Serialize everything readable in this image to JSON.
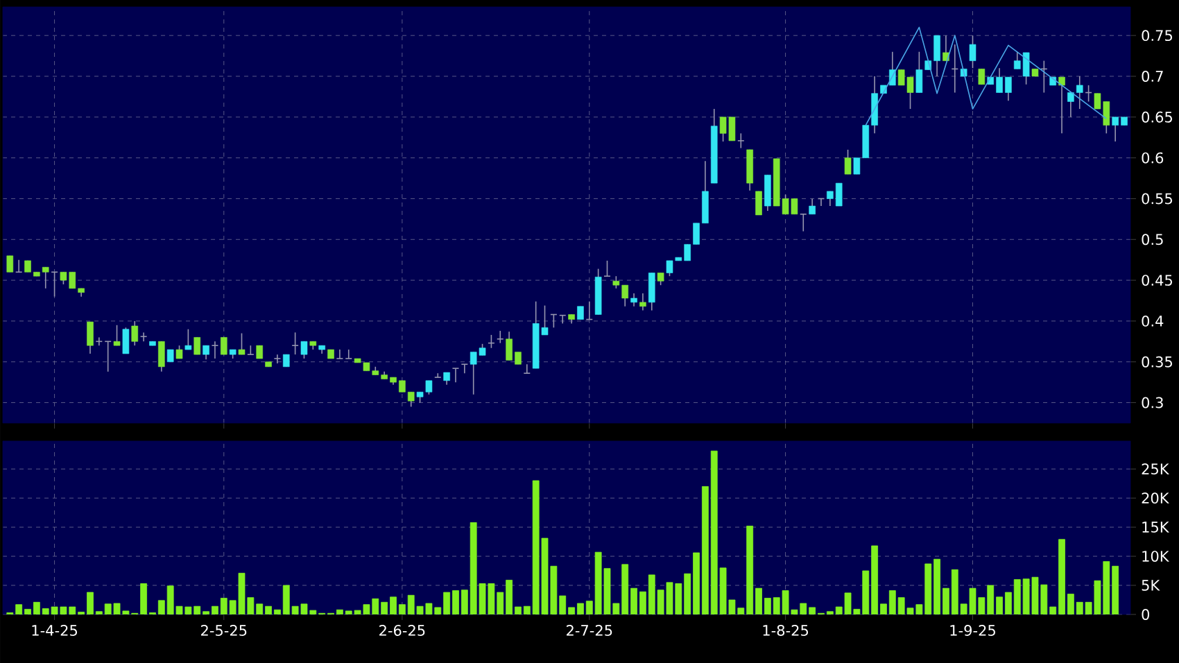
{
  "chart_data": [
    {
      "type": "candlestick",
      "categories": [
        null,
        null,
        null,
        null,
        null,
        null,
        null,
        null,
        null,
        null,
        null,
        null,
        null,
        null,
        null,
        null,
        null,
        null,
        null,
        null,
        null,
        null,
        null,
        null,
        null,
        null,
        null,
        null,
        null,
        null,
        null,
        null,
        null,
        null,
        null,
        null,
        null,
        null,
        null,
        null,
        null,
        null,
        null,
        null,
        null,
        null,
        null,
        null,
        null,
        null,
        null,
        null,
        null,
        null,
        null,
        null,
        null,
        null,
        null,
        null,
        null,
        null,
        null,
        null,
        null,
        null,
        null,
        null,
        null,
        null,
        null,
        null,
        null,
        null,
        null,
        null,
        null,
        null,
        null,
        null,
        null,
        null,
        null,
        null,
        null,
        null,
        null,
        null,
        null,
        null,
        null,
        null,
        null,
        null,
        null,
        null,
        null,
        null,
        null,
        null,
        null,
        null,
        null,
        null,
        null,
        null,
        null,
        null,
        null,
        null,
        null,
        null,
        null,
        null,
        null,
        null,
        null,
        null,
        null,
        null,
        null,
        null,
        null,
        null,
        null,
        null
      ],
      "ohlc": [
        [
          0.48,
          0.48,
          0.46,
          0.46
        ],
        [
          0.46,
          0.475,
          0.46,
          0.46
        ],
        [
          0.474,
          0.474,
          0.46,
          0.46
        ],
        [
          0.46,
          0.46,
          0.455,
          0.455
        ],
        [
          0.466,
          0.466,
          0.44,
          0.46
        ],
        [
          0.46,
          0.46,
          0.43,
          0.46
        ],
        [
          0.46,
          0.46,
          0.445,
          0.45
        ],
        [
          0.46,
          0.46,
          0.44,
          0.44
        ],
        [
          0.44,
          0.44,
          0.43,
          0.435
        ],
        [
          0.399,
          0.399,
          0.36,
          0.37
        ],
        [
          0.375,
          0.38,
          0.37,
          0.375
        ],
        [
          0.375,
          0.375,
          0.338,
          0.375
        ],
        [
          0.375,
          0.395,
          0.37,
          0.37
        ],
        [
          0.36,
          0.392,
          0.36,
          0.39
        ],
        [
          0.394,
          0.4,
          0.37,
          0.375
        ],
        [
          0.381,
          0.386,
          0.375,
          0.381
        ],
        [
          0.37,
          0.375,
          0.37,
          0.375
        ],
        [
          0.375,
          0.375,
          0.338,
          0.344
        ],
        [
          0.35,
          0.365,
          0.35,
          0.365
        ],
        [
          0.365,
          0.37,
          0.354,
          0.354
        ],
        [
          0.365,
          0.39,
          0.365,
          0.37
        ],
        [
          0.38,
          0.38,
          0.359,
          0.359
        ],
        [
          0.359,
          0.37,
          0.353,
          0.37
        ],
        [
          0.37,
          0.375,
          0.354,
          0.37
        ],
        [
          0.38,
          0.38,
          0.359,
          0.359
        ],
        [
          0.359,
          0.365,
          0.354,
          0.365
        ],
        [
          0.365,
          0.385,
          0.359,
          0.359
        ],
        [
          0.359,
          0.37,
          0.359,
          0.359
        ],
        [
          0.37,
          0.37,
          0.354,
          0.354
        ],
        [
          0.35,
          0.35,
          0.344,
          0.344
        ],
        [
          0.354,
          0.359,
          0.348,
          0.354
        ],
        [
          0.344,
          0.359,
          0.344,
          0.359
        ],
        [
          0.37,
          0.386,
          0.359,
          0.37
        ],
        [
          0.359,
          0.375,
          0.354,
          0.375
        ],
        [
          0.375,
          0.375,
          0.365,
          0.37
        ],
        [
          0.365,
          0.37,
          0.36,
          0.37
        ],
        [
          0.365,
          0.365,
          0.354,
          0.354
        ],
        [
          0.354,
          0.365,
          0.354,
          0.354
        ],
        [
          0.354,
          0.365,
          0.354,
          0.354
        ],
        [
          0.354,
          0.354,
          0.349,
          0.349
        ],
        [
          0.349,
          0.349,
          0.339,
          0.339
        ],
        [
          0.339,
          0.344,
          0.334,
          0.334
        ],
        [
          0.334,
          0.338,
          0.329,
          0.329
        ],
        [
          0.331,
          0.331,
          0.322,
          0.325
        ],
        [
          0.327,
          0.327,
          0.313,
          0.313
        ],
        [
          0.313,
          0.313,
          0.295,
          0.302
        ],
        [
          0.307,
          0.313,
          0.3,
          0.313
        ],
        [
          0.313,
          0.327,
          0.31,
          0.327
        ],
        [
          0.331,
          0.336,
          0.331,
          0.331
        ],
        [
          0.327,
          0.337,
          0.322,
          0.337
        ],
        [
          0.342,
          0.342,
          0.325,
          0.342
        ],
        [
          0.347,
          0.347,
          0.336,
          0.347
        ],
        [
          0.347,
          0.362,
          0.31,
          0.362
        ],
        [
          0.358,
          0.372,
          0.358,
          0.367
        ],
        [
          0.373,
          0.383,
          0.367,
          0.373
        ],
        [
          0.378,
          0.388,
          0.373,
          0.378
        ],
        [
          0.378,
          0.387,
          0.352,
          0.352
        ],
        [
          0.362,
          0.362,
          0.347,
          0.347
        ],
        [
          0.336,
          0.347,
          0.336,
          0.336
        ],
        [
          0.342,
          0.424,
          0.342,
          0.397
        ],
        [
          0.383,
          0.419,
          0.383,
          0.392
        ],
        [
          0.408,
          0.408,
          0.392,
          0.408
        ],
        [
          0.407,
          0.407,
          0.397,
          0.407
        ],
        [
          0.408,
          0.408,
          0.397,
          0.402
        ],
        [
          0.402,
          0.418,
          0.402,
          0.418
        ],
        [
          0.402,
          0.424,
          0.402,
          0.402
        ],
        [
          0.408,
          0.464,
          0.408,
          0.454
        ],
        [
          0.455,
          0.474,
          0.455,
          0.455
        ],
        [
          0.449,
          0.455,
          0.44,
          0.444
        ],
        [
          0.444,
          0.444,
          0.418,
          0.428
        ],
        [
          0.423,
          0.434,
          0.418,
          0.428
        ],
        [
          0.423,
          0.434,
          0.413,
          0.418
        ],
        [
          0.423,
          0.459,
          0.413,
          0.459
        ],
        [
          0.459,
          0.459,
          0.444,
          0.449
        ],
        [
          0.459,
          0.474,
          0.455,
          0.474
        ],
        [
          0.474,
          0.478,
          0.474,
          0.478
        ],
        [
          0.474,
          0.494,
          0.474,
          0.494
        ],
        [
          0.494,
          0.52,
          0.494,
          0.52
        ],
        [
          0.52,
          0.596,
          0.52,
          0.559
        ],
        [
          0.569,
          0.66,
          0.569,
          0.639
        ],
        [
          0.65,
          0.65,
          0.62,
          0.63
        ],
        [
          0.65,
          0.65,
          0.621,
          0.621
        ],
        [
          0.621,
          0.63,
          0.612,
          0.621
        ],
        [
          0.61,
          0.61,
          0.56,
          0.569
        ],
        [
          0.559,
          0.559,
          0.53,
          0.53
        ],
        [
          0.541,
          0.579,
          0.535,
          0.579
        ],
        [
          0.599,
          0.599,
          0.541,
          0.541
        ],
        [
          0.55,
          0.555,
          0.531,
          0.531
        ],
        [
          0.55,
          0.55,
          0.531,
          0.531
        ],
        [
          0.531,
          0.531,
          0.51,
          0.531
        ],
        [
          0.531,
          0.55,
          0.531,
          0.541
        ],
        [
          0.55,
          0.55,
          0.541,
          0.55
        ],
        [
          0.55,
          0.559,
          0.541,
          0.559
        ],
        [
          0.541,
          0.569,
          0.541,
          0.569
        ],
        [
          0.6,
          0.61,
          0.58,
          0.58
        ],
        [
          0.58,
          0.6,
          0.58,
          0.6
        ],
        [
          0.6,
          0.64,
          0.6,
          0.64
        ],
        [
          0.64,
          0.7,
          0.63,
          0.679
        ],
        [
          0.679,
          0.689,
          0.679,
          0.689
        ],
        [
          0.689,
          0.73,
          0.689,
          0.708
        ],
        [
          0.708,
          0.708,
          0.689,
          0.689
        ],
        [
          0.699,
          0.699,
          0.66,
          0.68
        ],
        [
          0.68,
          0.73,
          0.68,
          0.708
        ],
        [
          0.708,
          0.719,
          0.708,
          0.719
        ],
        [
          0.719,
          0.75,
          0.7,
          0.75
        ],
        [
          0.729,
          0.75,
          0.719,
          0.719
        ],
        [
          0.709,
          0.739,
          0.68,
          0.709
        ],
        [
          0.7,
          0.709,
          0.7,
          0.709
        ],
        [
          0.719,
          0.75,
          0.71,
          0.739
        ],
        [
          0.709,
          0.709,
          0.69,
          0.69
        ],
        [
          0.69,
          0.699,
          0.69,
          0.699
        ],
        [
          0.68,
          0.71,
          0.68,
          0.699
        ],
        [
          0.68,
          0.699,
          0.67,
          0.699
        ],
        [
          0.709,
          0.73,
          0.709,
          0.719
        ],
        [
          0.7,
          0.729,
          0.69,
          0.729
        ],
        [
          0.709,
          0.709,
          0.7,
          0.7
        ],
        [
          0.709,
          0.719,
          0.68,
          0.709
        ],
        [
          0.689,
          0.699,
          0.689,
          0.699
        ],
        [
          0.699,
          0.699,
          0.63,
          0.689
        ],
        [
          0.669,
          0.68,
          0.65,
          0.68
        ],
        [
          0.68,
          0.7,
          0.66,
          0.689
        ],
        [
          0.68,
          0.689,
          0.669,
          0.68
        ],
        [
          0.679,
          0.679,
          0.66,
          0.66
        ],
        [
          0.669,
          0.669,
          0.63,
          0.64
        ],
        [
          0.64,
          0.65,
          0.62,
          0.65
        ],
        [
          0.64,
          0.65,
          0.64,
          0.65
        ]
      ],
      "colors": [
        "#80e632",
        "#9696af",
        "#80e632",
        "#80e632",
        "#80e632",
        "#9696af",
        "#80e632",
        "#80e632",
        "#80e632",
        "#80e632",
        "#9696af",
        "#9696af",
        "#80e632",
        "#33e6f2",
        "#80e632",
        "#9696af",
        "#33e6f2",
        "#80e632",
        "#33e6f2",
        "#80e632",
        "#33e6f2",
        "#80e632",
        "#33e6f2",
        "#9696af",
        "#80e632",
        "#33e6f2",
        "#80e632",
        "#9696af",
        "#80e632",
        "#80e632",
        "#9696af",
        "#33e6f2",
        "#9696af",
        "#33e6f2",
        "#80e632",
        "#33e6f2",
        "#80e632",
        "#9696af",
        "#9696af",
        "#80e632",
        "#80e632",
        "#80e632",
        "#80e632",
        "#80e632",
        "#80e632",
        "#80e632",
        "#33e6f2",
        "#33e6f2",
        "#9696af",
        "#33e6f2",
        "#9696af",
        "#9696af",
        "#33e6f2",
        "#33e6f2",
        "#9696af",
        "#9696af",
        "#80e632",
        "#80e632",
        "#9696af",
        "#33e6f2",
        "#33e6f2",
        "#9696af",
        "#9696af",
        "#80e632",
        "#33e6f2",
        "#9696af",
        "#33e6f2",
        "#9696af",
        "#80e632",
        "#80e632",
        "#33e6f2",
        "#80e632",
        "#33e6f2",
        "#80e632",
        "#33e6f2",
        "#33e6f2",
        "#33e6f2",
        "#33e6f2",
        "#33e6f2",
        "#33e6f2",
        "#80e632",
        "#80e632",
        "#9696af",
        "#80e632",
        "#80e632",
        "#33e6f2",
        "#80e632",
        "#80e632",
        "#80e632",
        "#9696af",
        "#33e6f2",
        "#9696af",
        "#33e6f2",
        "#33e6f2",
        "#80e632",
        "#33e6f2",
        "#33e6f2",
        "#33e6f2",
        "#33e6f2",
        "#33e6f2",
        "#80e632",
        "#80e632",
        "#33e6f2",
        "#33e6f2",
        "#33e6f2",
        "#80e632",
        "#9696af",
        "#33e6f2",
        "#33e6f2",
        "#80e632",
        "#33e6f2",
        "#33e6f2",
        "#33e6f2",
        "#33e6f2",
        "#33e6f2",
        "#80e632",
        "#9696af",
        "#33e6f2",
        "#80e632",
        "#33e6f2",
        "#33e6f2",
        "#9696af",
        "#80e632",
        "#80e632",
        "#33e6f2",
        "#33e6f2"
      ],
      "series": [
        {
          "type": "line",
          "color": "#4aa8e8",
          "values": [
            null,
            null,
            null,
            null,
            null,
            null,
            null,
            null,
            null,
            null,
            null,
            null,
            null,
            null,
            null,
            null,
            null,
            null,
            null,
            null,
            null,
            null,
            null,
            null,
            null,
            null,
            null,
            null,
            null,
            null,
            null,
            null,
            null,
            null,
            null,
            null,
            null,
            null,
            null,
            null,
            null,
            null,
            null,
            null,
            null,
            null,
            null,
            null,
            null,
            null,
            null,
            null,
            null,
            null,
            null,
            null,
            null,
            null,
            null,
            null,
            null,
            null,
            null,
            null,
            null,
            null,
            null,
            null,
            null,
            null,
            null,
            null,
            null,
            null,
            null,
            null,
            null,
            null,
            null,
            null,
            null,
            null,
            null,
            null,
            null,
            null,
            null,
            null,
            null,
            null,
            null,
            null,
            null,
            null,
            null,
            null,
            0.64,
            null,
            null,
            null,
            null,
            null,
            0.76,
            null,
            0.679,
            null,
            0.75,
            null,
            0.66,
            null,
            null,
            null,
            0.738,
            null,
            null,
            null,
            null,
            null,
            null,
            null,
            null,
            null,
            null,
            0.648,
            null,
            null
          ]
        }
      ],
      "ylim": [
        0.275,
        0.785
      ],
      "yticks": [
        0.3,
        0.35,
        0.4,
        0.45,
        0.5,
        0.55,
        0.6,
        0.65,
        0.7,
        0.75
      ],
      "grid": true
    },
    {
      "type": "bar",
      "categories": [
        null,
        null,
        null,
        null,
        null,
        "1-4-25",
        null,
        null,
        null,
        null,
        null,
        null,
        null,
        null,
        null,
        null,
        null,
        null,
        null,
        null,
        null,
        null,
        null,
        null,
        "2-5-25",
        null,
        null,
        null,
        null,
        null,
        null,
        null,
        null,
        null,
        null,
        null,
        null,
        null,
        null,
        null,
        null,
        null,
        null,
        null,
        "2-6-25",
        null,
        null,
        null,
        null,
        null,
        null,
        null,
        null,
        null,
        null,
        null,
        null,
        null,
        null,
        null,
        null,
        null,
        null,
        null,
        null,
        "2-7-25",
        null,
        null,
        null,
        null,
        null,
        null,
        null,
        null,
        null,
        null,
        null,
        null,
        null,
        null,
        null,
        null,
        null,
        null,
        null,
        null,
        null,
        "1-8-25",
        null,
        null,
        null,
        null,
        null,
        null,
        null,
        null,
        null,
        null,
        null,
        null,
        null,
        null,
        null,
        null,
        null,
        null,
        null,
        null,
        "1-9-25",
        null,
        null,
        null,
        null,
        null,
        null,
        null,
        null,
        null,
        null,
        null,
        null,
        null,
        null,
        null,
        null,
        null
      ],
      "values": [
        300,
        1700,
        900,
        2100,
        1000,
        1300,
        1300,
        1300,
        400,
        3800,
        500,
        1800,
        1900,
        600,
        200,
        5300,
        300,
        2400,
        4900,
        1400,
        1300,
        1400,
        500,
        1400,
        2800,
        2400,
        7100,
        2900,
        1800,
        1400,
        800,
        5000,
        1400,
        1800,
        700,
        200,
        200,
        800,
        600,
        700,
        1700,
        2700,
        2100,
        3000,
        1700,
        3300,
        1400,
        1900,
        1200,
        3800,
        4100,
        4200,
        15800,
        5300,
        5300,
        3800,
        5900,
        1300,
        1400,
        23000,
        13100,
        8300,
        3200,
        1200,
        1900,
        2300,
        10700,
        7900,
        1900,
        8600,
        4500,
        3900,
        6800,
        4200,
        5500,
        5300,
        7000,
        10600,
        22000,
        28100,
        8000,
        2500,
        1100,
        15200,
        4500,
        2800,
        2900,
        4100,
        800,
        1900,
        1200,
        200,
        500,
        1300,
        3700,
        900,
        7500,
        11800,
        1800,
        4100,
        2900,
        1100,
        1700,
        8700,
        9500,
        4500,
        7700,
        1800,
        4500,
        2900,
        5000,
        3000,
        3800,
        6000,
        6100,
        6400,
        5100,
        1300,
        12900,
        3500,
        2100,
        2100,
        5800,
        9100,
        8300,
        null
      ],
      "color": "#80f020",
      "ylim": [
        0,
        29800
      ],
      "yticks": [
        0,
        {
          "value": 5000,
          "label": "5K"
        },
        {
          "value": 10000,
          "label": "10K"
        },
        {
          "value": 15000,
          "label": "15K"
        },
        {
          "value": 20000,
          "label": "20K"
        },
        {
          "value": 25000,
          "label": "25K"
        }
      ],
      "grid": true
    }
  ]
}
